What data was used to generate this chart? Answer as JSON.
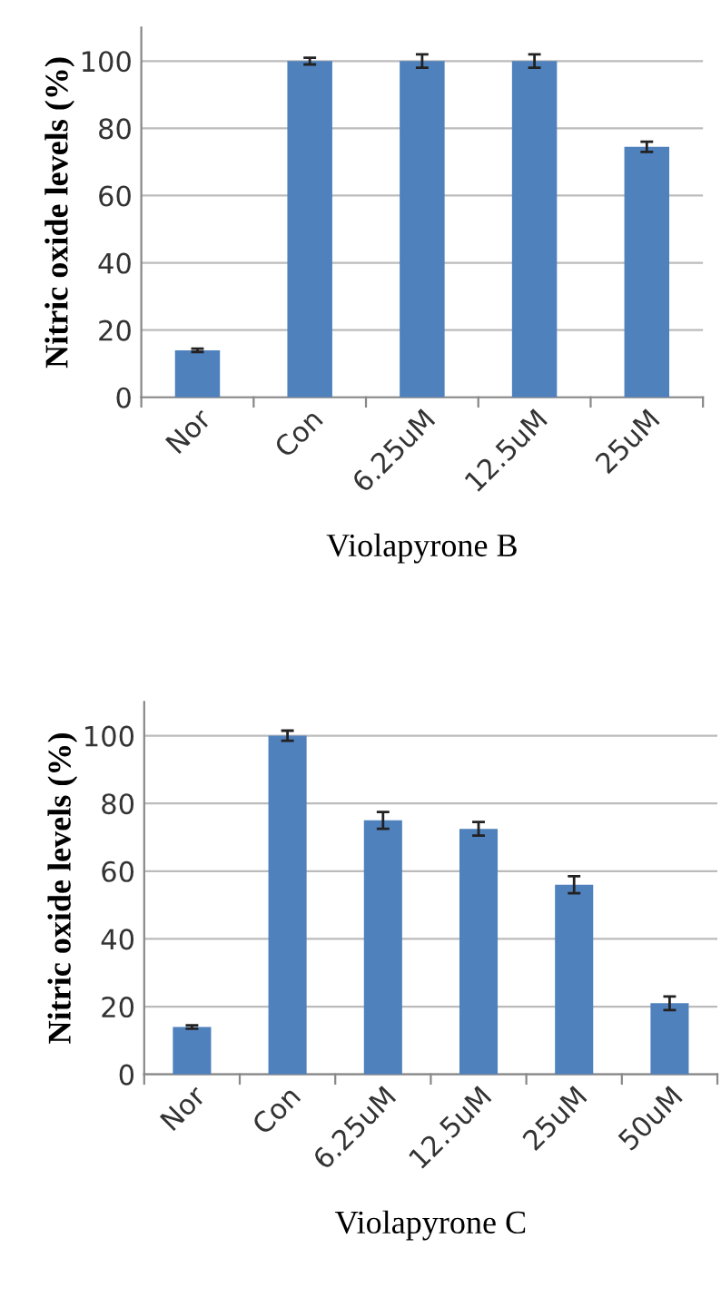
{
  "chart_data": [
    {
      "type": "bar",
      "xlabel": "Violapyrone B",
      "ylabel": "Nitric oxide levels (%)",
      "categories": [
        "Nor",
        "Con",
        "6.25uM",
        "12.5uM",
        "25uM"
      ],
      "values": [
        14,
        100,
        100,
        100,
        74.5
      ],
      "errors": [
        0.5,
        1,
        2,
        2,
        1.5
      ],
      "color": "#4f81bd",
      "ylim": [
        0,
        110
      ],
      "yticks": [
        0,
        20,
        40,
        60,
        80,
        100
      ],
      "grid": "y"
    },
    {
      "type": "bar",
      "xlabel": "Violapyrone C",
      "ylabel": "Nitric oxide levels (%)",
      "categories": [
        "Nor",
        "Con",
        "6.25uM",
        "12.5uM",
        "25uM",
        "50uM"
      ],
      "values": [
        14,
        100,
        75,
        72.5,
        56,
        21
      ],
      "errors": [
        0.5,
        1.5,
        2.5,
        2,
        2.5,
        2
      ],
      "color": "#4f81bd",
      "ylim": [
        0,
        110
      ],
      "yticks": [
        0,
        20,
        40,
        60,
        80,
        100
      ],
      "grid": "y"
    }
  ]
}
